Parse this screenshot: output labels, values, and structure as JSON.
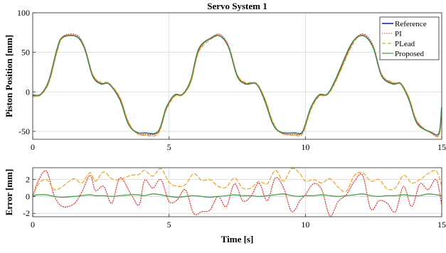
{
  "chart_data": [
    {
      "type": "line",
      "title": "Servo System 1",
      "xlabel": "",
      "ylabel": "Piston Position [mm]",
      "xlim": [
        0,
        15
      ],
      "ylim": [
        -60,
        100
      ],
      "xticks": [
        0,
        5,
        10,
        15
      ],
      "yticks": [
        -50,
        0,
        50,
        100
      ],
      "grid": true,
      "legend_position": "top-right",
      "series": [
        {
          "name": "Reference",
          "color": "#1f1fb4",
          "style": "solid",
          "x": [
            0,
            0.3,
            0.6,
            0.9,
            1.1,
            1.6,
            1.9,
            2.2,
            2.5,
            2.8,
            3.2,
            3.5,
            3.8,
            4.1,
            4.6,
            4.9,
            5.2,
            5.5,
            5.8,
            6.1,
            6.6,
            6.9,
            7.2,
            7.5,
            7.8,
            8.2,
            8.5,
            8.8,
            9.1,
            9.6,
            9.9,
            10.2,
            10.5,
            10.8,
            11.1,
            11.6,
            11.9,
            12.2,
            12.5,
            12.8,
            13.2,
            13.5,
            13.8,
            14.1,
            14.6,
            14.9,
            15
          ],
          "y": [
            -4,
            -3,
            15,
            55,
            69,
            70,
            55,
            20,
            10,
            10,
            -10,
            -40,
            -51,
            -52,
            -50,
            -20,
            -4,
            -3,
            15,
            55,
            69,
            70,
            55,
            20,
            10,
            10,
            -10,
            -40,
            -51,
            -52,
            -50,
            -20,
            -4,
            -3,
            15,
            55,
            69,
            70,
            55,
            20,
            10,
            10,
            -10,
            -40,
            -51,
            -52,
            -20
          ]
        },
        {
          "name": "PI",
          "color": "#e03030",
          "style": "dotted",
          "x": [
            0,
            0.3,
            0.6,
            0.9,
            1.1,
            1.6,
            1.9,
            2.2,
            2.5,
            2.8,
            3.2,
            3.5,
            3.8,
            4.1,
            4.6,
            4.9,
            5.2,
            5.5,
            5.8,
            6.1,
            6.6,
            6.9,
            7.2,
            7.5,
            7.8,
            8.2,
            8.5,
            8.8,
            9.1,
            9.6,
            9.9,
            10.2,
            10.5,
            10.8,
            11.1,
            11.6,
            11.9,
            12.2,
            12.5,
            12.8,
            13.2,
            13.5,
            13.8,
            14.1,
            14.6,
            14.9,
            15
          ],
          "y": [
            -5,
            -3,
            13,
            53,
            70,
            72,
            57,
            22,
            11,
            10,
            -8,
            -38,
            -52,
            -54,
            -51,
            -21,
            -5,
            -3,
            13,
            53,
            70,
            72,
            57,
            22,
            11,
            10,
            -8,
            -38,
            -52,
            -54,
            -51,
            -21,
            -5,
            -3,
            13,
            53,
            70,
            72,
            57,
            22,
            11,
            10,
            -8,
            -38,
            -52,
            -54,
            -22
          ]
        },
        {
          "name": "PLead",
          "color": "#f0a020",
          "style": "dashed",
          "x": [
            0,
            0.3,
            0.6,
            0.9,
            1.1,
            1.6,
            1.9,
            2.2,
            2.5,
            2.8,
            3.2,
            3.5,
            3.8,
            4.1,
            4.6,
            4.9,
            5.2,
            5.5,
            5.8,
            6.1,
            6.6,
            6.9,
            7.2,
            7.5,
            7.8,
            8.2,
            8.5,
            8.8,
            9.1,
            9.6,
            9.9,
            10.2,
            10.5,
            10.8,
            11.1,
            11.6,
            11.9,
            12.2,
            12.5,
            12.8,
            13.2,
            13.5,
            13.8,
            14.1,
            14.6,
            14.9,
            15
          ],
          "y": [
            -6,
            -4,
            12,
            51,
            68,
            70,
            56,
            22,
            12,
            11,
            -7,
            -37,
            -52,
            -55,
            -53,
            -23,
            -6,
            -4,
            12,
            51,
            68,
            70,
            56,
            22,
            12,
            11,
            -7,
            -37,
            -52,
            -55,
            -53,
            -23,
            -6,
            -4,
            12,
            51,
            68,
            70,
            56,
            22,
            12,
            11,
            -7,
            -37,
            -52,
            -55,
            -24
          ]
        },
        {
          "name": "Proposed",
          "color": "#3a9a3a",
          "style": "solid",
          "x": [
            0,
            0.3,
            0.6,
            0.9,
            1.1,
            1.6,
            1.9,
            2.2,
            2.5,
            2.8,
            3.2,
            3.5,
            3.8,
            4.1,
            4.6,
            4.9,
            5.2,
            5.5,
            5.8,
            6.1,
            6.6,
            6.9,
            7.2,
            7.5,
            7.8,
            8.2,
            8.5,
            8.8,
            9.1,
            9.6,
            9.9,
            10.2,
            10.5,
            10.8,
            11.1,
            11.6,
            11.9,
            12.2,
            12.5,
            12.8,
            13.2,
            13.5,
            13.8,
            14.1,
            14.6,
            14.9,
            15
          ],
          "y": [
            -4,
            -3,
            15,
            55,
            69,
            70,
            55,
            20,
            10,
            10,
            -10,
            -40,
            -51,
            -52,
            -50,
            -20,
            -4,
            -3,
            15,
            55,
            69,
            70,
            55,
            20,
            10,
            10,
            -10,
            -40,
            -51,
            -52,
            -50,
            -20,
            -4,
            -3,
            15,
            55,
            69,
            70,
            55,
            20,
            10,
            10,
            -10,
            -40,
            -51,
            -52,
            -20
          ]
        }
      ]
    },
    {
      "type": "line",
      "title": "",
      "xlabel": "Time [s]",
      "ylabel": "Error [mm]",
      "xlim": [
        0,
        15
      ],
      "ylim": [
        -2.4,
        3.4
      ],
      "xticks": [
        0,
        5,
        10,
        15
      ],
      "yticks": [
        -2,
        0,
        2
      ],
      "grid": true,
      "series": [
        {
          "name": "PI",
          "color": "#e03030",
          "style": "dotted",
          "x": [
            0,
            0.2,
            0.5,
            0.8,
            1.1,
            1.5,
            1.8,
            2.1,
            2.3,
            2.6,
            2.9,
            3.2,
            3.6,
            3.9,
            4.1,
            4.4,
            4.7,
            5.0,
            5.3,
            5.6,
            5.9,
            6.2,
            6.5,
            6.8,
            7.1,
            7.4,
            7.7,
            8.0,
            8.3,
            8.6,
            8.9,
            9.2,
            9.5,
            9.8,
            10.0,
            10.3,
            10.6,
            10.9,
            11.2,
            11.5,
            11.8,
            12.1,
            12.4,
            12.7,
            13.0,
            13.3,
            13.6,
            13.9,
            14.2,
            14.5,
            14.8,
            15
          ],
          "y": [
            0,
            1.8,
            3.0,
            0,
            -1.2,
            -0.9,
            0.5,
            2.5,
            0.7,
            1.2,
            -0.8,
            2.2,
            0.3,
            -1.0,
            1.9,
            1.0,
            2.0,
            -0.6,
            -0.4,
            0.8,
            -2.0,
            -1.8,
            -1.6,
            0,
            -1.2,
            1.5,
            -0.5,
            0,
            1.6,
            -0.5,
            2.2,
            1.0,
            -1.8,
            -0.5,
            0.2,
            1.5,
            0.8,
            -2.3,
            -0.6,
            0.2,
            1.8,
            2.5,
            -1.5,
            -0.5,
            -0.8,
            -1.8,
            1.2,
            -1.2,
            1.5,
            0.8,
            2.0,
            -1.0
          ]
        },
        {
          "name": "PLead",
          "color": "#f0a020",
          "style": "dashed",
          "x": [
            0,
            0.2,
            0.5,
            0.8,
            1.1,
            1.5,
            1.8,
            2.1,
            2.3,
            2.6,
            2.9,
            3.2,
            3.6,
            3.9,
            4.1,
            4.4,
            4.7,
            5.0,
            5.3,
            5.6,
            5.9,
            6.2,
            6.5,
            6.8,
            7.1,
            7.4,
            7.7,
            8.0,
            8.3,
            8.6,
            8.9,
            9.2,
            9.5,
            9.8,
            10.0,
            10.3,
            10.6,
            10.9,
            11.2,
            11.5,
            11.8,
            12.1,
            12.4,
            12.7,
            13.0,
            13.3,
            13.6,
            13.9,
            14.2,
            14.5,
            14.8,
            15
          ],
          "y": [
            0,
            1.4,
            2.0,
            0.8,
            1.2,
            2.1,
            1.6,
            2.8,
            1.8,
            2.9,
            2.1,
            2.0,
            2.5,
            2.6,
            3.1,
            2.4,
            3.3,
            1.7,
            1.2,
            1.4,
            2.7,
            1.9,
            2.0,
            1.2,
            1.1,
            2.2,
            1.0,
            1.0,
            1.8,
            1.5,
            3.1,
            1.8,
            3.3,
            2.7,
            1.8,
            2.0,
            1.6,
            2.1,
            1.1,
            0.6,
            2.5,
            2.8,
            1.8,
            2.0,
            0.9,
            1.0,
            2.5,
            1.6,
            2.0,
            2.7,
            3.0,
            1.3
          ]
        },
        {
          "name": "Proposed",
          "color": "#3a9a3a",
          "style": "solid",
          "x": [
            0,
            0.2,
            0.5,
            0.8,
            1.1,
            1.5,
            1.8,
            2.1,
            2.3,
            2.6,
            2.9,
            3.2,
            3.6,
            3.9,
            4.1,
            4.4,
            4.7,
            5.0,
            5.3,
            5.6,
            5.9,
            6.2,
            6.5,
            6.8,
            7.1,
            7.4,
            7.7,
            8.0,
            8.3,
            8.6,
            8.9,
            9.2,
            9.5,
            9.8,
            10.0,
            10.3,
            10.6,
            10.9,
            11.2,
            11.5,
            11.8,
            12.1,
            12.4,
            12.7,
            13.0,
            13.3,
            13.6,
            13.9,
            14.2,
            14.5,
            14.8,
            15
          ],
          "y": [
            0.1,
            0.2,
            0.2,
            0,
            -0.1,
            0,
            0.1,
            0.2,
            0.1,
            0.1,
            0,
            0.1,
            0.2,
            0.2,
            0.1,
            0.3,
            0.2,
            0,
            -0.1,
            0,
            0.1,
            0,
            -0.1,
            0,
            0.1,
            0.2,
            0.1,
            0.1,
            0,
            0.1,
            0.2,
            0.3,
            0.1,
            0,
            0.1,
            0.1,
            0.2,
            0.1,
            0,
            0.1,
            0.2,
            0.3,
            0.1,
            0,
            0.1,
            0.1,
            0.2,
            0.1,
            0.1,
            0.3,
            0.2,
            0.1
          ]
        }
      ]
    }
  ]
}
